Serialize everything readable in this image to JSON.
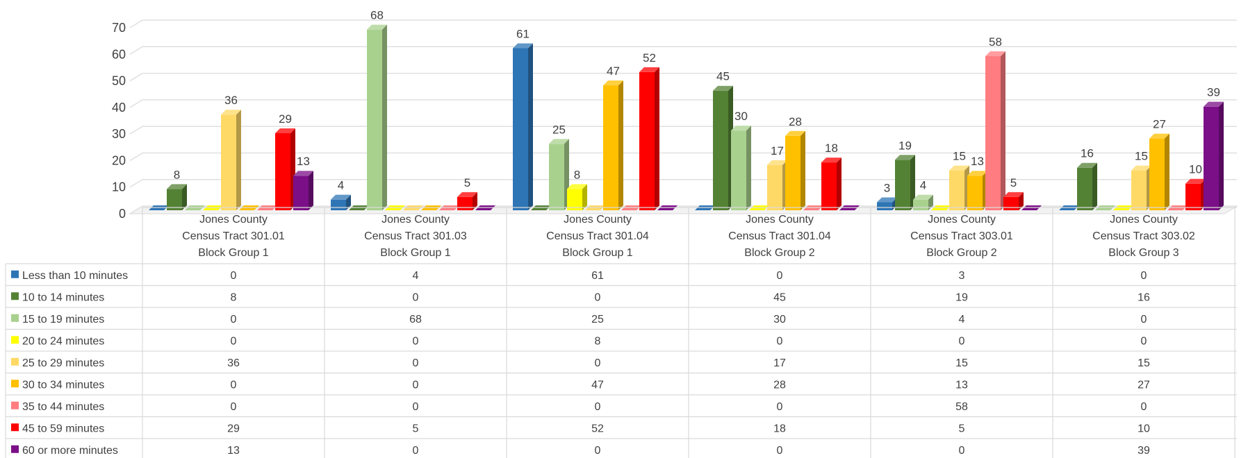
{
  "chart_data": {
    "type": "bar",
    "ylim": [
      0,
      70
    ],
    "yticks": [
      "0",
      "10",
      "20",
      "30",
      "40",
      "50",
      "60",
      "70"
    ],
    "grid": true,
    "legend_placement": "data-table-left",
    "categories": [
      [
        "Jones County",
        "Census Tract 301.01",
        "Block Group 1"
      ],
      [
        "Jones County",
        "Census Tract 301.03",
        "Block Group 1"
      ],
      [
        "Jones County",
        "Census Tract 301.04",
        "Block Group 1"
      ],
      [
        "Jones County",
        "Census Tract 301.04",
        "Block Group 2"
      ],
      [
        "Jones County",
        "Census Tract 303.01",
        "Block Group 2"
      ],
      [
        "Jones County",
        "Census Tract 303.02",
        "Block Group 3"
      ]
    ],
    "series": [
      {
        "name": "Less than 10 minutes",
        "color": "#2e75b6",
        "values": [
          0,
          4,
          61,
          0,
          3,
          0
        ]
      },
      {
        "name": "10 to 14 minutes",
        "color": "#548235",
        "values": [
          8,
          0,
          0,
          45,
          19,
          16
        ]
      },
      {
        "name": "15 to 19 minutes",
        "color": "#a9d18e",
        "values": [
          0,
          68,
          25,
          30,
          4,
          0
        ]
      },
      {
        "name": "20 to 24 minutes",
        "color": "#ffff00",
        "values": [
          0,
          0,
          8,
          0,
          0,
          0
        ]
      },
      {
        "name": "25 to 29 minutes",
        "color": "#ffd966",
        "values": [
          36,
          0,
          0,
          17,
          15,
          15
        ]
      },
      {
        "name": "30 to 34 minutes",
        "color": "#ffc000",
        "values": [
          0,
          0,
          47,
          28,
          13,
          27
        ]
      },
      {
        "name": "35 to 44 minutes",
        "color": "#ff7c80",
        "values": [
          0,
          0,
          0,
          0,
          58,
          0
        ]
      },
      {
        "name": "45 to 59 minutes",
        "color": "#ff0000",
        "values": [
          29,
          5,
          52,
          18,
          5,
          10
        ]
      },
      {
        "name": "60 or more minutes",
        "color": "#7b0f87",
        "values": [
          13,
          0,
          0,
          0,
          0,
          39
        ]
      }
    ]
  }
}
